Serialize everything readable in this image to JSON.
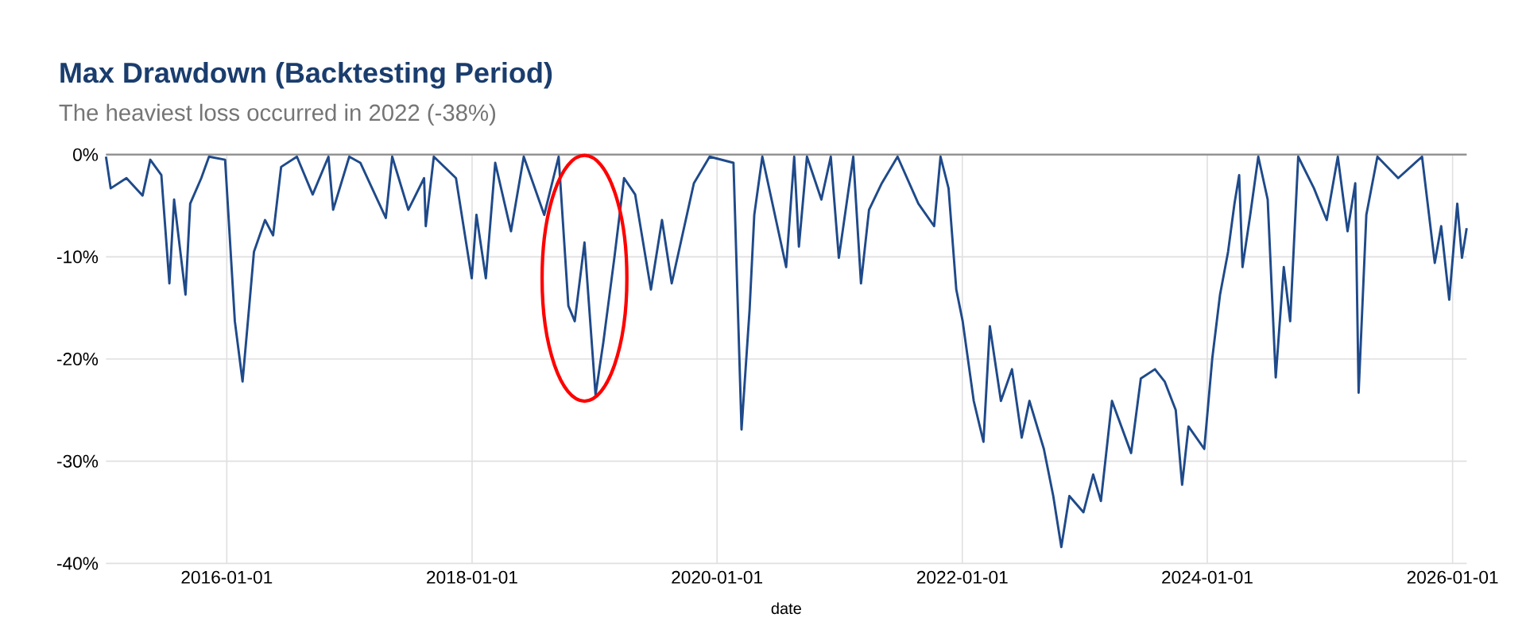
{
  "chart_data": {
    "type": "line",
    "title": "Max Drawdown (Backtesting Period)",
    "subtitle": "The heaviest loss occurred in 2022 (-38%)",
    "xlabel": "date",
    "color": "#1f4a8a",
    "grid": true,
    "legend": false,
    "marker": "none",
    "line_style": "solid",
    "xlim": [
      "2015-01-06",
      "2026-02-12"
    ],
    "xticks": [
      "2016-01-01",
      "2018-01-01",
      "2020-01-01",
      "2022-01-01",
      "2024-01-01",
      "2026-01-01"
    ],
    "ylim": [
      -40,
      0
    ],
    "yticks": [
      {
        "value": -40,
        "label": "-40%"
      },
      {
        "value": -30,
        "label": "-30%"
      },
      {
        "value": -20,
        "label": "-20%"
      },
      {
        "value": -10,
        "label": "-10%"
      },
      {
        "value": 0,
        "label": "0%"
      }
    ],
    "x": [
      "2015-01-06",
      "2015-01-20",
      "2015-03-08",
      "2015-04-25",
      "2015-05-18",
      "2015-06-20",
      "2015-07-14",
      "2015-07-28",
      "2015-08-31",
      "2015-09-14",
      "2015-10-17",
      "2015-11-09",
      "2015-12-27",
      "2016-01-25",
      "2016-02-17",
      "2016-03-08",
      "2016-03-22",
      "2016-04-24",
      "2016-05-18",
      "2016-06-11",
      "2016-07-28",
      "2016-09-13",
      "2016-10-30",
      "2016-11-13",
      "2016-12-31",
      "2017-02-02",
      "2017-04-19",
      "2017-05-08",
      "2017-06-25",
      "2017-08-11",
      "2017-08-16",
      "2017-09-09",
      "2017-11-14",
      "2017-12-31",
      "2018-01-14",
      "2018-02-11",
      "2018-03-11",
      "2018-04-27",
      "2018-06-04",
      "2018-08-04",
      "2018-09-16",
      "2018-10-15",
      "2018-11-03",
      "2018-12-02",
      "2019-01-04",
      "2019-01-27",
      "2019-03-01",
      "2019-03-30",
      "2019-05-02",
      "2019-06-18",
      "2019-07-21",
      "2019-08-19",
      "2019-10-24",
      "2019-12-10",
      "2020-02-19",
      "2020-03-14",
      "2020-04-07",
      "2020-04-21",
      "2020-05-15",
      "2020-07-25",
      "2020-08-18",
      "2020-09-01",
      "2020-09-25",
      "2020-11-07",
      "2020-12-05",
      "2020-12-29",
      "2021-02-10",
      "2021-03-05",
      "2021-03-29",
      "2021-05-06",
      "2021-06-22",
      "2021-08-23",
      "2021-10-09",
      "2021-10-28",
      "2021-11-21",
      "2021-12-14",
      "2022-01-02",
      "2022-02-04",
      "2022-03-05",
      "2022-03-24",
      "2022-04-26",
      "2022-05-29",
      "2022-06-27",
      "2022-07-20",
      "2022-09-01",
      "2022-09-29",
      "2022-10-23",
      "2022-11-16",
      "2022-12-28",
      "2023-01-26",
      "2023-02-18",
      "2023-03-23",
      "2023-05-19",
      "2023-06-17",
      "2023-07-29",
      "2023-08-27",
      "2023-09-29",
      "2023-10-18",
      "2023-11-06",
      "2023-12-23",
      "2024-01-16",
      "2024-02-08",
      "2024-03-03",
      "2024-03-22",
      "2024-04-05",
      "2024-04-15",
      "2024-05-08",
      "2024-06-01",
      "2024-06-29",
      "2024-07-23",
      "2024-08-16",
      "2024-09-04",
      "2024-09-28",
      "2024-11-14",
      "2024-12-22",
      "2025-01-24",
      "2025-02-22",
      "2025-03-17",
      "2025-03-27",
      "2025-04-19",
      "2025-05-22",
      "2025-07-23",
      "2025-10-02",
      "2025-11-09",
      "2025-11-28",
      "2025-12-22",
      "2026-01-15",
      "2026-01-29",
      "2026-02-12"
    ],
    "values": [
      -0.2,
      -3.3,
      -2.3,
      -4.0,
      -0.5,
      -2.0,
      -12.6,
      -4.4,
      -13.7,
      -4.8,
      -2.3,
      -0.2,
      -0.5,
      -16.3,
      -22.2,
      -14.8,
      -9.5,
      -6.4,
      -7.9,
      -1.2,
      -0.2,
      -3.9,
      -0.2,
      -5.4,
      -0.2,
      -0.8,
      -6.2,
      -0.2,
      -5.4,
      -2.3,
      -7.0,
      -0.2,
      -2.3,
      -12.1,
      -5.9,
      -12.1,
      -0.8,
      -7.5,
      -0.2,
      -5.9,
      -0.2,
      -14.8,
      -16.3,
      -8.6,
      -23.5,
      -18.4,
      -10.1,
      -2.3,
      -3.9,
      -13.2,
      -6.4,
      -12.6,
      -2.8,
      -0.2,
      -0.8,
      -26.9,
      -15.2,
      -5.9,
      -0.2,
      -11.0,
      -0.2,
      -9.0,
      -0.2,
      -4.4,
      -0.2,
      -10.1,
      -0.2,
      -12.6,
      -5.4,
      -2.8,
      -0.2,
      -4.8,
      -7.0,
      -0.2,
      -3.3,
      -13.2,
      -16.3,
      -24.1,
      -28.1,
      -16.8,
      -24.1,
      -21.0,
      -27.7,
      -24.1,
      -28.8,
      -33.4,
      -38.4,
      -33.4,
      -35.0,
      -31.3,
      -33.9,
      -24.1,
      -29.2,
      -21.9,
      -21.0,
      -22.2,
      -25.0,
      -32.3,
      -26.6,
      -28.8,
      -19.9,
      -13.7,
      -9.5,
      -4.8,
      -2.0,
      -11.0,
      -5.9,
      -0.2,
      -4.4,
      -21.8,
      -11.0,
      -16.3,
      -0.2,
      -3.3,
      -6.4,
      -0.2,
      -7.5,
      -2.8,
      -23.3,
      -5.9,
      -0.2,
      -2.3,
      -0.2,
      -10.6,
      -7.0,
      -14.2,
      -4.8,
      -10.1,
      -7.2
    ]
  }
}
